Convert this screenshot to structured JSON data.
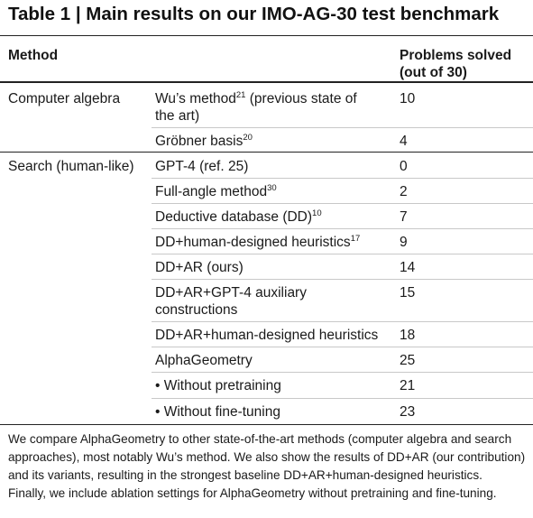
{
  "title": "Table 1 | Main results on our IMO-AG-30 test benchmark",
  "header": {
    "method": "Method",
    "solved_line1": "Problems solved",
    "solved_line2": "(out of 30)"
  },
  "groups": [
    {
      "name": "Computer algebra"
    },
    {
      "name": "Search (human-like)"
    }
  ],
  "rows": [
    {
      "line1": "Wu’s method",
      "ref": "21",
      "line1_rest": " (previous state of",
      "line2": "the art)",
      "value": "10"
    },
    {
      "line1": "Gröbner basis",
      "ref": "20",
      "value": "4"
    },
    {
      "line1": "GPT-4 (ref. 25)",
      "value": "0"
    },
    {
      "line1": "Full-angle method",
      "ref": "30",
      "value": "2"
    },
    {
      "line1": "Deductive database (DD)",
      "ref": "10",
      "value": "7"
    },
    {
      "line1": "DD+human-designed heuristics",
      "ref": "17",
      "value": "9"
    },
    {
      "line1": "DD+AR (ours)",
      "value": "14"
    },
    {
      "line1": "DD+AR+GPT-4 auxiliary",
      "line2": "constructions",
      "value": "15"
    },
    {
      "line1": "DD+AR+human-designed heuristics",
      "value": "18"
    },
    {
      "line1": "AlphaGeometry",
      "value": "25"
    },
    {
      "line1": "• Without pretraining",
      "value": "21"
    },
    {
      "line1": "• Without fine-tuning",
      "value": "23"
    }
  ],
  "caption": [
    "We compare AlphaGeometry to other state-of-the-art methods (computer algebra and search",
    "approaches), most notably Wu’s method. We also show the results of DD+AR (our contribution)",
    "and its variants, resulting in the strongest baseline DD+AR+human-designed heuristics.",
    "Finally, we include ablation settings for AlphaGeometry without pretraining and fine-tuning."
  ]
}
